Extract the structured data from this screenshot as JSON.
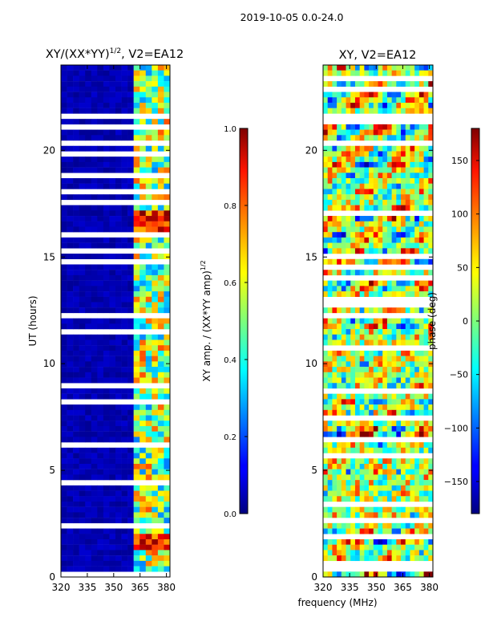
{
  "suptitle": "2019-10-05 0.0-24.0",
  "chart_data": [
    {
      "type": "heatmap",
      "title_main": "XY/(XX*YY)",
      "title_sup": "1/2",
      "title_tail": ", V2=EA12",
      "ylabel": "UT (hours)",
      "xticks": [
        "320",
        "335",
        "350",
        "365",
        "380"
      ],
      "xtick_values": [
        320,
        335,
        350,
        365,
        380
      ],
      "yticks": [
        "0",
        "5",
        "10",
        "15",
        "20"
      ],
      "ytick_values": [
        0,
        5,
        10,
        15,
        20
      ],
      "xlim": [
        320,
        382
      ],
      "ylim": [
        0,
        24
      ],
      "colorscale": "jet",
      "colorbar": {
        "label_main": "XY amp. / (XX*YY amp)",
        "label_sup": "1/2",
        "ticks": [
          "0.0",
          "0.2",
          "0.4",
          "0.6",
          "0.8",
          "1.0"
        ],
        "tick_values": [
          0,
          0.2,
          0.4,
          0.6,
          0.8,
          1.0
        ],
        "range": [
          0,
          1
        ]
      }
    },
    {
      "type": "heatmap",
      "title": "XY, V2=EA12",
      "xticks": [
        "320",
        "335",
        "350",
        "365",
        "380"
      ],
      "xtick_values": [
        320,
        335,
        350,
        365,
        380
      ],
      "yticks": [
        "0",
        "5",
        "10",
        "15",
        "20"
      ],
      "ytick_values": [
        0,
        5,
        10,
        15,
        20
      ],
      "xlim": [
        320,
        382
      ],
      "ylim": [
        0,
        24
      ],
      "colorscale": "jet",
      "colorbar": {
        "label": "phase (deg)",
        "ticks": [
          "−150",
          "−100",
          "−50",
          "0",
          "50",
          "100",
          "150"
        ],
        "tick_values": [
          -150,
          -100,
          -50,
          0,
          50,
          100,
          150
        ],
        "range": [
          -180,
          180
        ]
      }
    }
  ],
  "xlabel": "frequency (MHz)"
}
